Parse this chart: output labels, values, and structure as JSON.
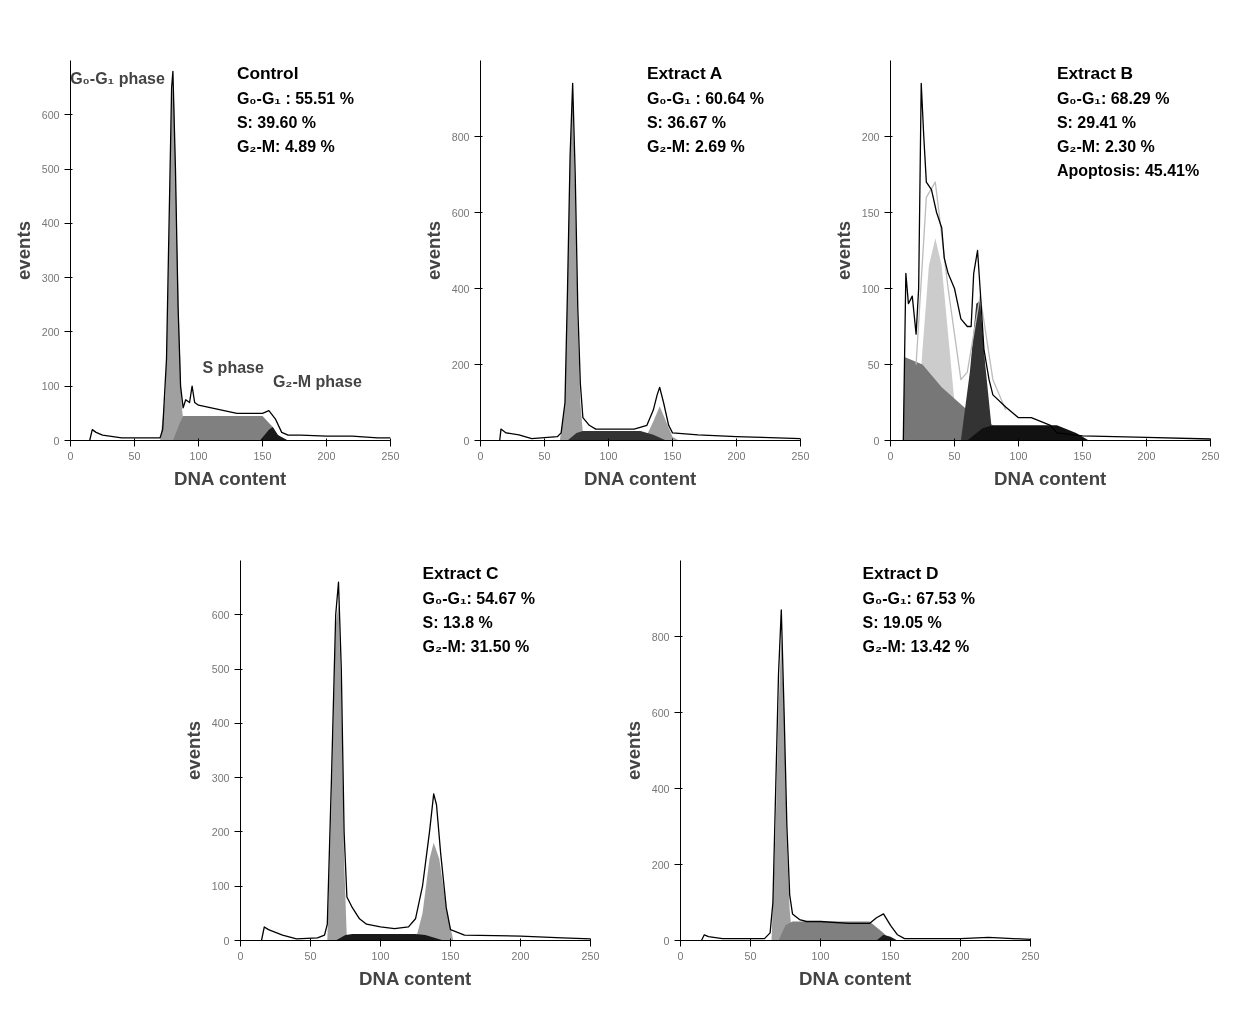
{
  "chart_data": [
    {
      "type": "line",
      "title": "Control",
      "xlabel": "DNA content",
      "ylabel": "events",
      "xlim": [
        0,
        250
      ],
      "ylim": [
        0,
        700
      ],
      "xticks": [
        0,
        50,
        100,
        150,
        200,
        250
      ],
      "yticks": [
        0,
        100,
        200,
        300,
        400,
        500,
        600
      ],
      "annotations": [
        "G₀-G₁ : 55.51 %",
        "S: 39.60 %",
        "G₂-M: 4.89 %",
        {
          "text": "G₀-G₁ phase",
          "x": 80,
          "y": 680
        },
        {
          "text": "S phase",
          "x": 100,
          "y": 45
        },
        {
          "text": "G₂-M phase",
          "x": 155,
          "y": 20
        }
      ],
      "series": [
        {
          "type": "area",
          "color": "#a0a0a0",
          "x": [
            70,
            74,
            76,
            78,
            79,
            80,
            81,
            83,
            85,
            87,
            90
          ],
          "values": [
            0,
            80,
            250,
            500,
            620,
            650,
            620,
            400,
            200,
            60,
            0
          ]
        },
        {
          "type": "area",
          "color": "#808080",
          "x": [
            80,
            85,
            88,
            150,
            158,
            165
          ],
          "values": [
            0,
            30,
            45,
            45,
            25,
            0
          ]
        },
        {
          "type": "area",
          "color": "#1a1a1a",
          "x": [
            148,
            155,
            158,
            162,
            170
          ],
          "values": [
            0,
            20,
            25,
            10,
            0
          ]
        },
        {
          "color": "#000000",
          "x": [
            15,
            17,
            20,
            25,
            40,
            60,
            70,
            72,
            75,
            77,
            79,
            80,
            82,
            84,
            86,
            88,
            90,
            93,
            95,
            97,
            100,
            110,
            120,
            130,
            140,
            150,
            155,
            160,
            165,
            170,
            180,
            200,
            220,
            240,
            250
          ],
          "values": [
            0,
            20,
            15,
            10,
            5,
            5,
            5,
            20,
            150,
            400,
            650,
            680,
            500,
            250,
            100,
            60,
            75,
            70,
            100,
            70,
            65,
            60,
            55,
            50,
            50,
            50,
            55,
            40,
            15,
            10,
            10,
            8,
            8,
            5,
            5
          ]
        }
      ]
    },
    {
      "type": "line",
      "title": "Extract A",
      "xlabel": "DNA content",
      "ylabel": "events",
      "xlim": [
        0,
        250
      ],
      "ylim": [
        0,
        1000
      ],
      "xticks": [
        0,
        50,
        100,
        150,
        200,
        250
      ],
      "yticks": [
        0,
        200,
        400,
        600,
        800
      ],
      "annotations": [
        "G₀-G₁ : 60.64 %",
        "S: 36.67 %",
        "G₂-M: 2.69 %"
      ],
      "series": [
        {
          "type": "area",
          "color": "#a0a0a0",
          "x": [
            62,
            66,
            68,
            70,
            72,
            74,
            76,
            78,
            80,
            82
          ],
          "values": [
            0,
            100,
            400,
            750,
            900,
            650,
            300,
            100,
            20,
            0
          ]
        },
        {
          "type": "area",
          "color": "#a0a0a0",
          "x": [
            128,
            135,
            140,
            145,
            150,
            155
          ],
          "values": [
            0,
            50,
            90,
            50,
            10,
            0
          ]
        },
        {
          "type": "area",
          "color": "#333333",
          "x": [
            68,
            75,
            80,
            125,
            135,
            145
          ],
          "values": [
            0,
            20,
            25,
            25,
            15,
            0
          ]
        },
        {
          "color": "#000000",
          "x": [
            15,
            16,
            20,
            30,
            40,
            60,
            63,
            66,
            68,
            70,
            72,
            74,
            76,
            78,
            80,
            85,
            90,
            100,
            120,
            130,
            135,
            138,
            140,
            143,
            147,
            150,
            170,
            200,
            220,
            250
          ],
          "values": [
            0,
            30,
            20,
            15,
            5,
            10,
            20,
            100,
            400,
            750,
            940,
            700,
            350,
            150,
            60,
            40,
            30,
            30,
            30,
            40,
            80,
            120,
            140,
            100,
            40,
            20,
            15,
            10,
            8,
            5
          ]
        }
      ]
    },
    {
      "type": "line",
      "title": "Extract B",
      "xlabel": "DNA content",
      "ylabel": "events",
      "xlim": [
        0,
        250
      ],
      "ylim": [
        0,
        250
      ],
      "xticks": [
        0,
        50,
        100,
        150,
        200,
        250
      ],
      "yticks": [
        0,
        50,
        100,
        150,
        200
      ],
      "annotations": [
        "G₀-G₁: 68.29 %",
        "S: 29.41 %",
        "G₂-M: 2.30 %",
        "Apoptosis: 45.41%"
      ],
      "series": [
        {
          "type": "area",
          "color": "#cccccc",
          "x": [
            20,
            25,
            30,
            35,
            40,
            45,
            50,
            55
          ],
          "values": [
            0,
            60,
            115,
            133,
            115,
            70,
            25,
            0
          ]
        },
        {
          "type": "area",
          "color": "#777777",
          "x": [
            10,
            11,
            25,
            40,
            60,
            80,
            90
          ],
          "values": [
            0,
            55,
            50,
            35,
            20,
            10,
            0
          ]
        },
        {
          "type": "area",
          "color": "#333333",
          "x": [
            55,
            62,
            67,
            70,
            74,
            80
          ],
          "values": [
            0,
            45,
            90,
            92,
            50,
            0
          ]
        },
        {
          "type": "area",
          "color": "#111111",
          "x": [
            60,
            72,
            80,
            130,
            145,
            155
          ],
          "values": [
            0,
            8,
            10,
            10,
            5,
            0
          ]
        },
        {
          "color": "#bbbbbb",
          "x": [
            20,
            28,
            35,
            45,
            55,
            60,
            70,
            80,
            90
          ],
          "values": [
            50,
            160,
            170,
            100,
            40,
            45,
            95,
            40,
            20
          ]
        },
        {
          "color": "#000000",
          "x": [
            10,
            12,
            14,
            17,
            20,
            22,
            24,
            26,
            28,
            32,
            36,
            40,
            42,
            45,
            50,
            55,
            60,
            63,
            65,
            68,
            70,
            73,
            77,
            80,
            90,
            100,
            110,
            125,
            130,
            150,
            200,
            250
          ],
          "values": [
            0,
            110,
            90,
            95,
            70,
            100,
            235,
            200,
            170,
            165,
            150,
            140,
            120,
            110,
            100,
            80,
            75,
            75,
            110,
            125,
            100,
            60,
            40,
            30,
            22,
            15,
            15,
            10,
            5,
            3,
            2,
            1
          ]
        }
      ]
    },
    {
      "type": "line",
      "title": "Extract C",
      "xlabel": "DNA content",
      "ylabel": "events",
      "xlim": [
        0,
        250
      ],
      "ylim": [
        0,
        700
      ],
      "xticks": [
        0,
        50,
        100,
        150,
        200,
        250
      ],
      "yticks": [
        0,
        100,
        200,
        300,
        400,
        500,
        600
      ],
      "annotations": [
        "G₀-G₁: 54.67 %",
        "S: 13.8 %",
        "G₂-M: 31.50 %"
      ],
      "series": [
        {
          "type": "area",
          "color": "#a0a0a0",
          "x": [
            62,
            65,
            68,
            70,
            72,
            74,
            76
          ],
          "values": [
            0,
            250,
            580,
            620,
            450,
            150,
            0
          ]
        },
        {
          "type": "area",
          "color": "#a0a0a0",
          "x": [
            125,
            130,
            135,
            138,
            142,
            147,
            152
          ],
          "values": [
            0,
            50,
            150,
            180,
            150,
            60,
            0
          ]
        },
        {
          "type": "area",
          "color": "#1a1a1a",
          "x": [
            68,
            75,
            80,
            125,
            132,
            145
          ],
          "values": [
            0,
            10,
            12,
            12,
            10,
            0
          ]
        },
        {
          "color": "#000000",
          "x": [
            15,
            17,
            20,
            25,
            30,
            40,
            55,
            60,
            62,
            65,
            68,
            70,
            72,
            74,
            76,
            80,
            85,
            90,
            100,
            110,
            120,
            125,
            130,
            135,
            138,
            140,
            143,
            147,
            150,
            160,
            200,
            230,
            250
          ],
          "values": [
            0,
            25,
            20,
            15,
            10,
            3,
            5,
            10,
            30,
            300,
            600,
            660,
            500,
            200,
            80,
            60,
            40,
            30,
            25,
            22,
            25,
            40,
            100,
            200,
            270,
            250,
            160,
            60,
            20,
            10,
            8,
            5,
            3
          ]
        }
      ]
    },
    {
      "type": "line",
      "title": "Extract D",
      "xlabel": "DNA content",
      "ylabel": "events",
      "xlim": [
        0,
        250
      ],
      "ylim": [
        0,
        1000
      ],
      "xticks": [
        0,
        50,
        100,
        150,
        200,
        250
      ],
      "yticks": [
        0,
        200,
        400,
        600,
        800
      ],
      "annotations": [
        "G₀-G₁: 67.53 %",
        "S: 19.05 %",
        "G₂-M: 13.42 %"
      ],
      "series": [
        {
          "type": "area",
          "color": "#a0a0a0",
          "x": [
            65,
            68,
            70,
            72,
            74,
            76,
            78,
            80
          ],
          "values": [
            0,
            300,
            600,
            800,
            600,
            250,
            80,
            0
          ]
        },
        {
          "type": "area",
          "color": "#808080",
          "x": [
            70,
            75,
            80,
            135,
            145,
            150
          ],
          "values": [
            0,
            40,
            50,
            50,
            20,
            0
          ]
        },
        {
          "type": "area",
          "color": "#1a1a1a",
          "x": [
            140,
            145,
            150,
            155
          ],
          "values": [
            0,
            15,
            10,
            0
          ]
        },
        {
          "color": "#000000",
          "x": [
            15,
            17,
            20,
            30,
            50,
            60,
            64,
            66,
            68,
            70,
            72,
            74,
            76,
            78,
            80,
            85,
            90,
            100,
            120,
            135,
            140,
            145,
            150,
            155,
            160,
            200,
            220,
            250
          ],
          "values": [
            0,
            15,
            10,
            5,
            5,
            5,
            20,
            100,
            400,
            700,
            870,
            600,
            300,
            120,
            70,
            55,
            50,
            50,
            45,
            45,
            60,
            70,
            40,
            15,
            5,
            5,
            8,
            3
          ]
        }
      ]
    }
  ]
}
